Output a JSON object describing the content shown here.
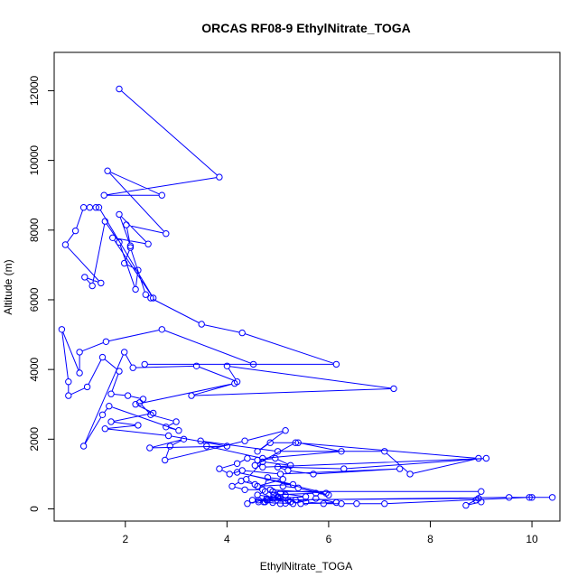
{
  "chart_data": {
    "type": "line",
    "title": "ORCAS RF08-9 EthylNitrate_TOGA",
    "xlabel": "EthylNitrate_TOGA",
    "ylabel": "Altitude (m)",
    "xlim": [
      0.6,
      10.55
    ],
    "ylim": [
      -350,
      13100
    ],
    "xticks": [
      2,
      4,
      6,
      8,
      10
    ],
    "yticks": [
      0,
      2000,
      4000,
      6000,
      8000,
      10000,
      12000
    ],
    "grid": false,
    "marker": "open-circle",
    "color": "#0000ff",
    "series": [
      {
        "x": [
          1.88,
          3.85,
          1.58,
          2.72,
          1.65,
          2.8,
          2.02,
          2.1,
          1.88,
          2.45,
          1.75,
          2.55,
          1.48,
          1.42,
          1.3,
          1.18,
          1.02,
          0.82,
          1.52,
          1.2,
          1.35,
          1.6,
          1.88,
          2.2,
          2.25,
          1.98,
          2.1,
          2.4,
          2.5,
          3.5,
          4.3,
          6.15,
          2.38,
          4.52,
          2.72,
          1.62,
          1.1,
          1.1,
          0.75,
          0.88,
          0.88,
          1.25,
          1.55,
          1.88,
          1.72,
          2.05,
          2.35,
          2.28,
          2.5,
          3.0,
          2.8,
          3.05,
          1.68,
          1.55,
          1.18,
          1.98,
          2.15,
          3.4,
          4.2,
          4.0,
          7.28,
          3.3,
          4.15,
          2.2,
          2.55,
          1.72,
          2.25,
          1.6,
          2.85,
          4.0,
          2.48,
          3.15,
          2.88,
          2.78,
          4.35,
          5.15,
          4.6,
          4.85,
          5.4,
          6.25,
          4.7,
          3.6,
          3.48,
          5.0,
          7.1,
          7.6,
          8.95,
          5.35,
          4.55,
          4.7,
          9.1,
          6.3,
          5.0,
          5.2,
          5.7,
          7.4,
          5.05,
          4.3,
          4.05,
          3.85,
          4.2,
          4.4,
          4.6,
          4.95,
          5.25,
          4.7,
          4.38,
          4.55,
          4.28,
          4.1,
          4.35,
          4.7,
          4.8,
          5.1,
          4.6,
          5.3,
          4.2,
          5.95,
          4.85,
          4.9,
          9.0,
          8.9,
          9.0,
          8.7,
          8.95,
          4.5,
          4.4,
          5.15,
          5.05,
          4.6,
          4.75,
          5.05,
          5.55,
          4.9,
          4.75,
          4.62,
          4.78,
          5.0,
          5.35,
          5.55,
          5.9,
          6.25,
          6.55,
          7.1,
          9.95,
          10.0,
          10.4,
          9.55,
          4.8,
          4.62,
          4.72,
          5.05,
          5.15,
          4.9,
          5.3,
          5.75,
          6.15,
          5.45,
          5.2,
          4.92,
          5.25,
          5.0,
          4.78,
          4.92,
          5.75,
          6.0,
          5.4,
          5.1
        ],
        "y": [
          12050,
          9520,
          9000,
          9000,
          9700,
          7900,
          8150,
          7550,
          8450,
          7600,
          7780,
          6050,
          8650,
          8650,
          8650,
          8650,
          7980,
          7580,
          6480,
          6650,
          6400,
          8250,
          7650,
          6300,
          6850,
          7050,
          7500,
          6150,
          6050,
          5300,
          5050,
          4150,
          4150,
          4150,
          5150,
          4800,
          4500,
          3900,
          5150,
          3650,
          3250,
          3500,
          4350,
          3950,
          3300,
          3250,
          3150,
          3050,
          2700,
          2500,
          2350,
          2250,
          2950,
          2700,
          1800,
          4500,
          4050,
          4100,
          3650,
          4100,
          3450,
          3250,
          3600,
          3000,
          2750,
          2500,
          2400,
          2300,
          2100,
          1800,
          1750,
          2000,
          1800,
          1400,
          1950,
          2250,
          1650,
          1900,
          1900,
          1650,
          1450,
          1800,
          1950,
          1650,
          1650,
          1000,
          1450,
          1900,
          1250,
          1200,
          1450,
          1150,
          1200,
          1100,
          1000,
          1150,
          1000,
          1100,
          1000,
          1150,
          1300,
          1450,
          1400,
          1450,
          1250,
          1350,
          850,
          700,
          800,
          650,
          550,
          550,
          900,
          850,
          650,
          700,
          1050,
          450,
          550,
          500,
          500,
          250,
          200,
          100,
          300,
          250,
          150,
          400,
          300,
          400,
          500,
          450,
          350,
          300,
          200,
          250,
          300,
          350,
          250,
          200,
          150,
          150,
          150,
          150,
          330,
          330,
          330,
          330,
          250,
          200,
          200,
          150,
          160,
          180,
          150,
          300,
          180,
          150,
          250,
          300,
          200,
          320,
          250,
          400,
          450,
          400,
          600,
          650
        ]
      }
    ]
  }
}
